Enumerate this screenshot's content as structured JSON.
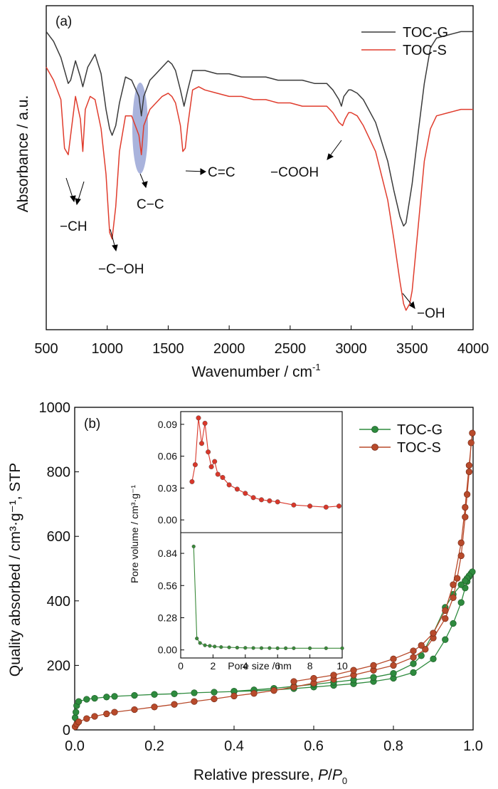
{
  "chart_data": [
    {
      "panel_label": "(a)",
      "type": "line",
      "xlabel": "Wavenumber / cm",
      "xlabel_sup": "-1",
      "ylabel": "Absorbance / a.u.",
      "xlim": [
        500,
        4000
      ],
      "ylim": [
        0,
        1
      ],
      "xticks": [
        500,
        1000,
        1500,
        2000,
        2500,
        3000,
        3500,
        4000
      ],
      "legend_position": "top-right",
      "series": [
        {
          "name": "TOC-G",
          "color": "#3a3a3a",
          "x": [
            500,
            560,
            620,
            680,
            700,
            740,
            780,
            800,
            840,
            900,
            950,
            990,
            1020,
            1040,
            1070,
            1100,
            1150,
            1200,
            1260,
            1280,
            1300,
            1350,
            1400,
            1450,
            1500,
            1530,
            1560,
            1600,
            1630,
            1660,
            1700,
            1750,
            1800,
            1900,
            2000,
            2100,
            2200,
            2300,
            2400,
            2500,
            2600,
            2700,
            2800,
            2850,
            2900,
            2920,
            2940,
            2980,
            3000,
            3050,
            3100,
            3200,
            3300,
            3350,
            3400,
            3430,
            3450,
            3500,
            3550,
            3600,
            3650,
            3700,
            3800,
            3900,
            4000
          ],
          "y": [
            0.92,
            0.89,
            0.84,
            0.76,
            0.77,
            0.83,
            0.78,
            0.75,
            0.81,
            0.85,
            0.79,
            0.68,
            0.62,
            0.6,
            0.63,
            0.7,
            0.78,
            0.77,
            0.72,
            0.66,
            0.72,
            0.77,
            0.79,
            0.81,
            0.83,
            0.82,
            0.8,
            0.74,
            0.69,
            0.74,
            0.8,
            0.8,
            0.8,
            0.79,
            0.79,
            0.78,
            0.78,
            0.78,
            0.77,
            0.77,
            0.77,
            0.76,
            0.76,
            0.74,
            0.71,
            0.69,
            0.72,
            0.74,
            0.74,
            0.73,
            0.71,
            0.64,
            0.52,
            0.43,
            0.35,
            0.32,
            0.33,
            0.45,
            0.61,
            0.76,
            0.87,
            0.9,
            0.91,
            0.92,
            0.92
          ]
        },
        {
          "name": "TOC-S",
          "color": "#e03c2d",
          "x": [
            500,
            560,
            620,
            650,
            680,
            700,
            740,
            780,
            800,
            820,
            860,
            900,
            950,
            990,
            1020,
            1040,
            1070,
            1100,
            1150,
            1200,
            1260,
            1280,
            1300,
            1350,
            1400,
            1450,
            1500,
            1530,
            1560,
            1600,
            1620,
            1640,
            1660,
            1700,
            1750,
            1800,
            1900,
            2000,
            2100,
            2200,
            2300,
            2400,
            2500,
            2600,
            2700,
            2800,
            2850,
            2900,
            2930,
            2950,
            2980,
            3000,
            3050,
            3100,
            3200,
            3300,
            3350,
            3400,
            3430,
            3450,
            3480,
            3500,
            3550,
            3600,
            3650,
            3700,
            3800,
            3900,
            4000
          ],
          "y": [
            0.81,
            0.77,
            0.71,
            0.56,
            0.54,
            0.6,
            0.72,
            0.65,
            0.55,
            0.68,
            0.72,
            0.71,
            0.62,
            0.48,
            0.3,
            0.28,
            0.38,
            0.55,
            0.66,
            0.66,
            0.6,
            0.54,
            0.63,
            0.68,
            0.7,
            0.72,
            0.73,
            0.72,
            0.7,
            0.63,
            0.55,
            0.56,
            0.63,
            0.74,
            0.75,
            0.74,
            0.73,
            0.72,
            0.72,
            0.71,
            0.71,
            0.7,
            0.7,
            0.69,
            0.69,
            0.69,
            0.67,
            0.64,
            0.63,
            0.65,
            0.67,
            0.67,
            0.66,
            0.63,
            0.55,
            0.4,
            0.28,
            0.15,
            0.08,
            0.06,
            0.08,
            0.12,
            0.32,
            0.52,
            0.62,
            0.66,
            0.67,
            0.68,
            0.68
          ]
        }
      ],
      "annotations": [
        {
          "text": "−CH"
        },
        {
          "text": "−C−OH"
        },
        {
          "text": "C−C"
        },
        {
          "text": "C=C"
        },
        {
          "text": "−COOH"
        },
        {
          "text": "−OH"
        }
      ],
      "highlight": {
        "x_center": 1250,
        "color": "#9aa6d6"
      }
    },
    {
      "panel_label": "(b)",
      "type": "line",
      "xlabel": "Relative pressure, ",
      "xlabel_italic": "P",
      "xlabel_slash": "/",
      "xlabel_italic2": "P",
      "xlabel_sub": "0",
      "ylabel": "Quality absorbed / cm³·g⁻¹, STP",
      "xlim": [
        0,
        1
      ],
      "ylim": [
        0,
        1000
      ],
      "xticks": [
        0.0,
        0.2,
        0.4,
        0.6,
        0.8,
        1.0
      ],
      "xtick_labels": [
        "0.0",
        "0.2",
        "0.4",
        "0.6",
        "0.8",
        "1.0"
      ],
      "yticks": [
        0,
        200,
        400,
        600,
        800,
        1000
      ],
      "legend_position": "top-right",
      "series": [
        {
          "name": "TOC-G",
          "color": "#2e8b3e",
          "x": [
            0.001,
            0.003,
            0.005,
            0.01,
            0.03,
            0.05,
            0.08,
            0.1,
            0.15,
            0.2,
            0.25,
            0.3,
            0.35,
            0.4,
            0.45,
            0.5,
            0.55,
            0.6,
            0.65,
            0.7,
            0.75,
            0.8,
            0.85,
            0.9,
            0.93,
            0.95,
            0.97,
            0.98,
            0.985,
            0.99,
            0.995,
            0.998,
            0.99,
            0.985,
            0.98,
            0.97,
            0.95,
            0.93,
            0.9,
            0.87,
            0.85,
            0.8,
            0.75,
            0.7,
            0.65,
            0.6,
            0.55,
            0.5,
            0.45,
            0.4
          ],
          "y": [
            38,
            55,
            75,
            88,
            95,
            98,
            102,
            104,
            107,
            110,
            112,
            115,
            117,
            119,
            121,
            124,
            128,
            133,
            138,
            143,
            150,
            160,
            178,
            220,
            280,
            330,
            395,
            440,
            460,
            475,
            485,
            490,
            478,
            470,
            462,
            450,
            420,
            380,
            300,
            230,
            205,
            175,
            163,
            155,
            148,
            141,
            135,
            129,
            124,
            120
          ]
        },
        {
          "name": "TOC-S",
          "color": "#b84a2b",
          "x": [
            0.001,
            0.005,
            0.01,
            0.03,
            0.05,
            0.08,
            0.1,
            0.15,
            0.2,
            0.25,
            0.3,
            0.35,
            0.4,
            0.45,
            0.5,
            0.55,
            0.6,
            0.65,
            0.7,
            0.75,
            0.8,
            0.85,
            0.88,
            0.9,
            0.93,
            0.95,
            0.96,
            0.97,
            0.98,
            0.985,
            0.99,
            0.995,
            0.998,
            0.99,
            0.98,
            0.97,
            0.95,
            0.93,
            0.9,
            0.87,
            0.85,
            0.8,
            0.75,
            0.7,
            0.65,
            0.6,
            0.55
          ],
          "y": [
            10,
            18,
            25,
            35,
            42,
            50,
            55,
            63,
            71,
            79,
            88,
            96,
            105,
            113,
            122,
            133,
            145,
            157,
            170,
            185,
            200,
            225,
            250,
            285,
            345,
            410,
            470,
            540,
            660,
            730,
            800,
            890,
            920,
            820,
            690,
            580,
            450,
            370,
            300,
            262,
            245,
            220,
            200,
            185,
            170,
            160,
            150
          ]
        }
      ],
      "inset": {
        "xlabel": "Pore size / nm",
        "ylabel": "Pore volume / cm³·g⁻¹",
        "xlim": [
          0,
          10
        ],
        "xticks": [
          0,
          2,
          4,
          6,
          8,
          10
        ],
        "top": {
          "series_ref": "TOC-S",
          "color": "#d9372a",
          "ylim": [
            -0.012,
            0.102
          ],
          "yticks": [
            0.0,
            0.03,
            0.06,
            0.09
          ],
          "ytick_labels": [
            "0.00",
            "0.03",
            "0.06",
            "0.09"
          ],
          "x": [
            0.7,
            0.9,
            1.1,
            1.3,
            1.5,
            1.7,
            1.9,
            2.1,
            2.3,
            2.6,
            3.0,
            3.5,
            4.0,
            4.5,
            5.0,
            5.5,
            6.0,
            7.0,
            8.0,
            9.0,
            9.8
          ],
          "y": [
            0.036,
            0.052,
            0.096,
            0.072,
            0.091,
            0.064,
            0.05,
            0.055,
            0.043,
            0.04,
            0.033,
            0.029,
            0.025,
            0.021,
            0.019,
            0.018,
            0.017,
            0.014,
            0.013,
            0.012,
            0.013
          ]
        },
        "bottom": {
          "series_ref": "TOC-G",
          "color": "#3a8a3a",
          "ylim": [
            -0.07,
            1.02
          ],
          "yticks": [
            0.0,
            0.28,
            0.56,
            0.84
          ],
          "ytick_labels": [
            "0.00",
            "0.28",
            "0.56",
            "0.84"
          ],
          "x": [
            0.8,
            1.0,
            1.2,
            1.5,
            1.8,
            2.1,
            2.5,
            3.0,
            3.5,
            4.0,
            4.5,
            5.0,
            5.5,
            6.0,
            6.5,
            7.0,
            8.0,
            9.0,
            10.0
          ],
          "y": [
            0.9,
            0.1,
            0.06,
            0.04,
            0.035,
            0.03,
            0.025,
            0.022,
            0.02,
            0.018,
            0.017,
            0.016,
            0.016,
            0.015,
            0.015,
            0.015,
            0.015,
            0.015,
            0.015
          ]
        }
      }
    }
  ]
}
